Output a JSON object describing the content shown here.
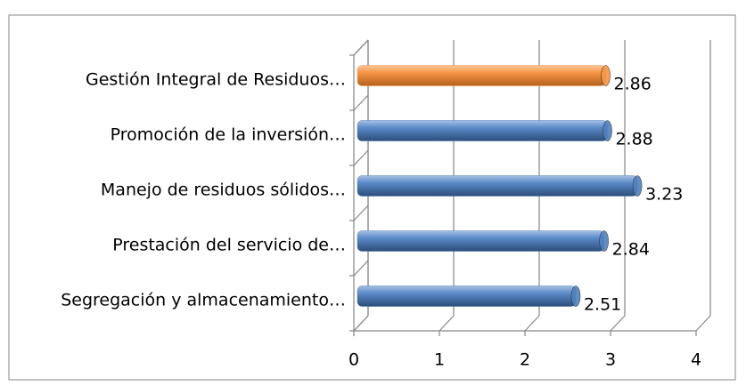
{
  "chart_data": {
    "type": "bar",
    "orientation": "horizontal",
    "categories": [
      "Gestión Integral de Residuos…",
      "Promoción de la inversión…",
      "Manejo de residuos sólidos…",
      "Prestación del servicio de…",
      "Segregación y almacenamiento…"
    ],
    "values": [
      2.86,
      2.88,
      3.23,
      2.84,
      2.51
    ],
    "colors": [
      "#f79646",
      "#4f81bd",
      "#4f81bd",
      "#4f81bd",
      "#4f81bd"
    ],
    "xlim": [
      0,
      4
    ],
    "xticks": [
      0,
      1,
      2,
      3,
      4
    ],
    "grid": true
  }
}
